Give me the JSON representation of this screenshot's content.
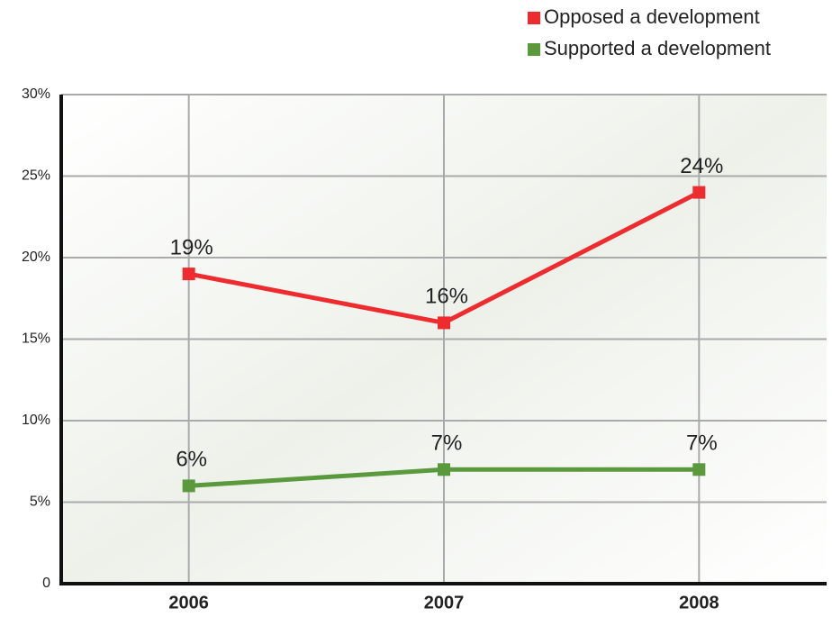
{
  "chart_data": {
    "type": "line",
    "categories": [
      "2006",
      "2007",
      "2008"
    ],
    "series": [
      {
        "name": "Opposed a development",
        "color": "#ee2b2f",
        "values": [
          19,
          16,
          24
        ],
        "value_labels": [
          "19%",
          "16%",
          "24%"
        ]
      },
      {
        "name": "Supported a development",
        "color": "#5a9a3c",
        "values": [
          6,
          7,
          7
        ],
        "value_labels": [
          "6%",
          "7%",
          "7%"
        ]
      }
    ],
    "ylim": [
      0,
      30
    ],
    "yticks": [
      0,
      {
        "value": 5,
        "label": "5%"
      },
      {
        "value": 10,
        "label": "10%"
      },
      {
        "value": 15,
        "label": "15%"
      },
      {
        "value": 20,
        "label": "20%"
      },
      {
        "value": 25,
        "label": "25%"
      },
      {
        "value": 30,
        "label": "30%"
      }
    ],
    "grid": true,
    "legend": "top-right"
  }
}
